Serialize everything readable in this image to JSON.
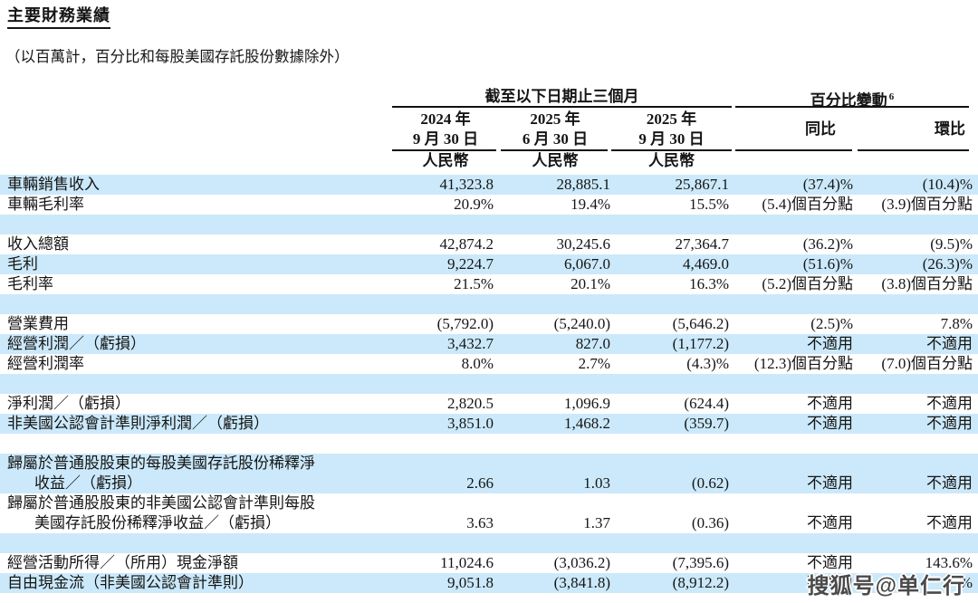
{
  "title": "主要財務業績",
  "subtitle": "（以百萬計，百分比和每股美國存託股份數據除外）",
  "colors": {
    "row_shade": "#cbe9fa",
    "watermark_gray": "#4a4a4a",
    "text": "#151515",
    "rule": "#111111"
  },
  "watermark": "搜狐号@单仁行",
  "table": {
    "group_headers": {
      "period": "截至以下日期止三個月",
      "pct_change": "百分比變動",
      "pct_change_footnote": "6"
    },
    "col_headers": [
      {
        "line1": "2024 年",
        "line2": "9 月 30 日",
        "currency": "人民幣"
      },
      {
        "line1": "2025 年",
        "line2": "6 月 30 日",
        "currency": "人民幣"
      },
      {
        "line1": "2025 年",
        "line2": "9 月 30 日",
        "currency": "人民幣"
      }
    ],
    "yoy_header": "同比",
    "qoq_header": "環比",
    "column_keys": [
      "period-2024-09-30",
      "period-2025-06-30",
      "period-2025-09-30",
      "yoy",
      "qoq"
    ],
    "rows": [
      {
        "label_lines": [
          "車輛銷售收入"
        ],
        "values": [
          "41,323.8",
          "28,885.1",
          "25,867.1",
          "(37.4)%",
          "(10.4)%"
        ],
        "shade": true
      },
      {
        "label_lines": [
          "車輛毛利率"
        ],
        "values": [
          "20.9%",
          "19.4%",
          "15.5%",
          "(5.4)個百分點",
          "(3.9)個百分點"
        ],
        "shade": false
      },
      {
        "blank": true,
        "shade": true
      },
      {
        "label_lines": [
          "收入總額"
        ],
        "values": [
          "42,874.2",
          "30,245.6",
          "27,364.7",
          "(36.2)%",
          "(9.5)%"
        ],
        "shade": false
      },
      {
        "label_lines": [
          "毛利"
        ],
        "values": [
          "9,224.7",
          "6,067.0",
          "4,469.0",
          "(51.6)%",
          "(26.3)%"
        ],
        "shade": true
      },
      {
        "label_lines": [
          "毛利率"
        ],
        "values": [
          "21.5%",
          "20.1%",
          "16.3%",
          "(5.2)個百分點",
          "(3.8)個百分點"
        ],
        "shade": false
      },
      {
        "blank": true,
        "shade": true
      },
      {
        "label_lines": [
          "營業費用"
        ],
        "values": [
          "(5,792.0)",
          "(5,240.0)",
          "(5,646.2)",
          "(2.5)%",
          "7.8%"
        ],
        "shade": false
      },
      {
        "label_lines": [
          "經營利潤／（虧損）"
        ],
        "values": [
          "3,432.7",
          "827.0",
          "(1,177.2)",
          "不適用",
          "不適用"
        ],
        "shade": true
      },
      {
        "label_lines": [
          "經營利潤率"
        ],
        "values": [
          "8.0%",
          "2.7%",
          "(4.3)%",
          "(12.3)個百分點",
          "(7.0)個百分點"
        ],
        "shade": false
      },
      {
        "blank": true,
        "shade": true
      },
      {
        "label_lines": [
          "淨利潤／（虧損）"
        ],
        "values": [
          "2,820.5",
          "1,096.9",
          "(624.4)",
          "不適用",
          "不適用"
        ],
        "shade": false
      },
      {
        "label_lines": [
          "非美國公認會計準則淨利潤／（虧損）"
        ],
        "values": [
          "3,851.0",
          "1,468.2",
          "(359.7)",
          "不適用",
          "不適用"
        ],
        "shade": true
      },
      {
        "blank": true,
        "shade": false
      },
      {
        "label_lines": [
          "歸屬於普通股股東的每股美國存託股份稀釋淨",
          "收益／（虧損）"
        ],
        "values": [
          "2.66",
          "1.03",
          "(0.62)",
          "不適用",
          "不適用"
        ],
        "shade": true
      },
      {
        "label_lines": [
          "歸屬於普通股股東的非美國公認會計準則每股",
          "美國存託股份稀釋淨收益／（虧損）"
        ],
        "values": [
          "3.63",
          "1.37",
          "(0.36)",
          "不適用",
          "不適用"
        ],
        "shade": false
      },
      {
        "blank": true,
        "shade": true
      },
      {
        "label_lines": [
          "經營活動所得／（所用）現金淨額"
        ],
        "values": [
          "11,024.6",
          "(3,036.2)",
          "(7,395.6)",
          "不適用",
          "143.6%"
        ],
        "shade": false
      },
      {
        "label_lines": [
          "自由現金流（非美國公認會計準則）"
        ],
        "values": [
          "9,051.8",
          "(3,841.8)",
          "(8,912.2)",
          "不適用",
          "%"
        ],
        "shade": true
      }
    ]
  }
}
